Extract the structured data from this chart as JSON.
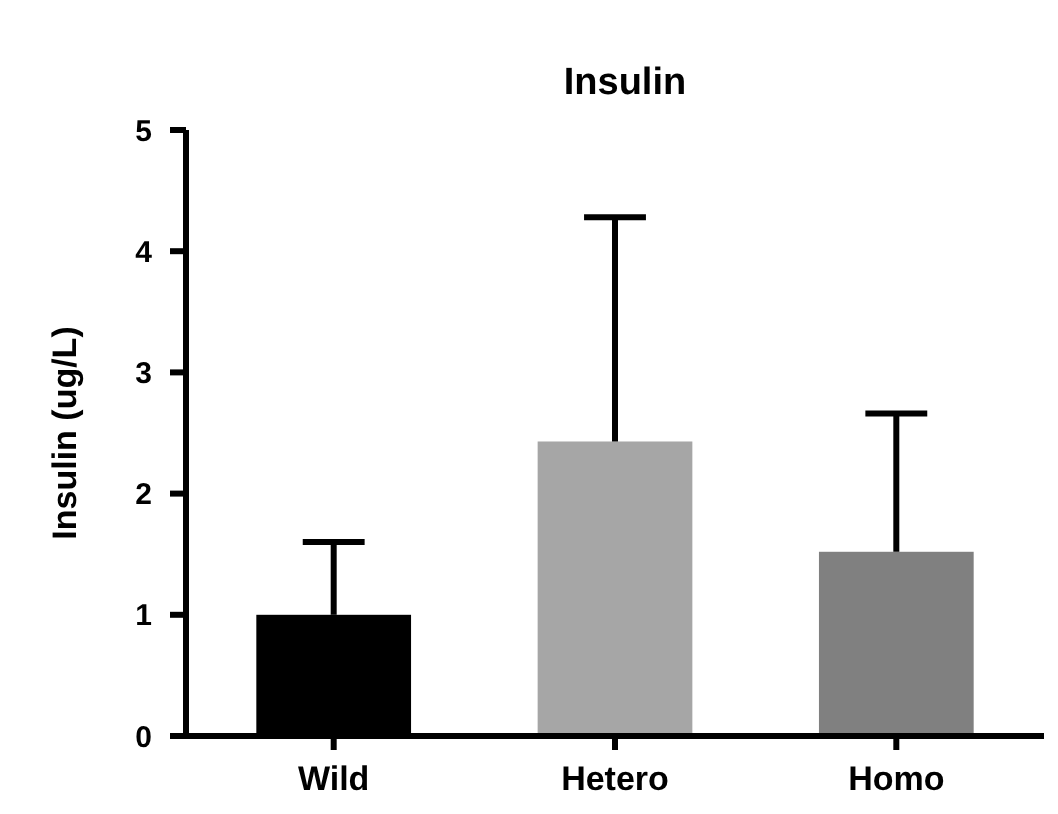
{
  "chart_data": {
    "type": "bar",
    "title": "Insulin",
    "ylabel": "Insulin (ug/L)",
    "categories": [
      "Wild",
      "Hetero",
      "Homo"
    ],
    "values": [
      1.0,
      2.43,
      1.52
    ],
    "colors": [
      "#000000",
      "#a6a6a6",
      "#808080"
    ],
    "errors": [
      [
        1.0,
        1.6
      ],
      [
        2.43,
        4.28
      ],
      [
        1.52,
        2.66
      ]
    ],
    "ylim": [
      0,
      5
    ],
    "yticks": [
      0,
      1,
      2,
      3,
      4,
      5
    ]
  }
}
